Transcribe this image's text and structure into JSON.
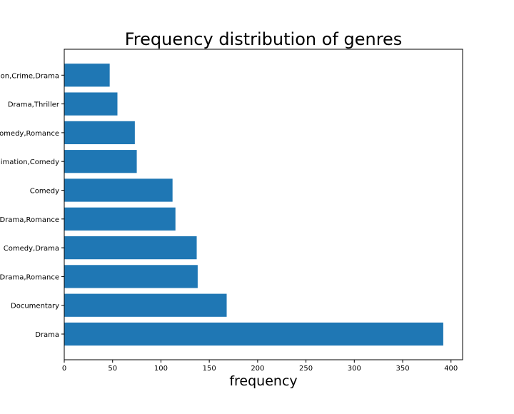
{
  "chart_data": {
    "type": "bar",
    "orientation": "horizontal",
    "title": "Frequency distribution of genres",
    "xlabel": "frequency",
    "ylabel": "",
    "categories": [
      "Drama",
      "Documentary",
      "Drama,Romance",
      "Comedy,Drama",
      "Drama,Romance",
      "Comedy",
      "imation,Comedy",
      "omedy,Romance",
      "Drama,Thriller",
      "on,Crime,Drama"
    ],
    "values": [
      392,
      168,
      138,
      137,
      115,
      112,
      75,
      73,
      55,
      47
    ],
    "xlim": [
      0,
      412
    ],
    "xticks": [
      0,
      50,
      100,
      150,
      200,
      250,
      300,
      350,
      400
    ],
    "bar_color": "#1f77b4",
    "grid": false,
    "legend": false
  }
}
